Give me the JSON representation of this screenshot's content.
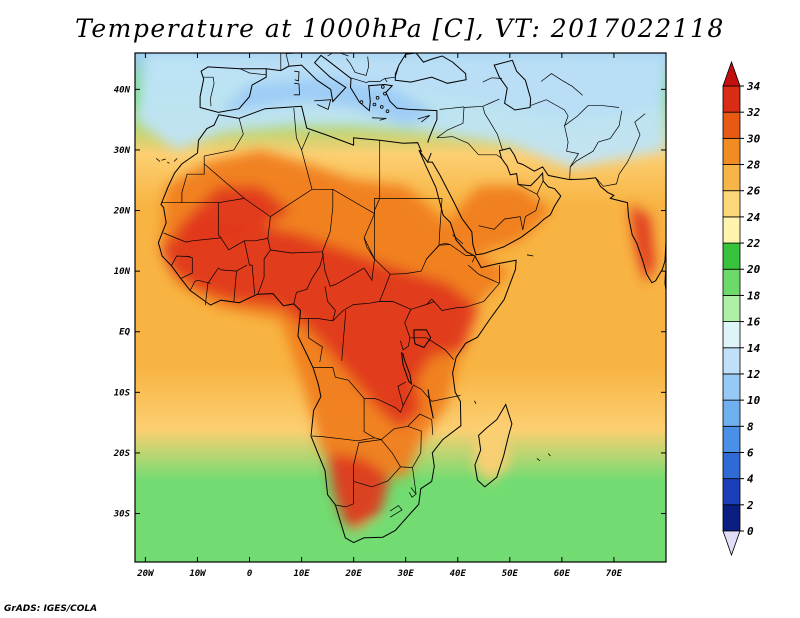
{
  "title": "Temperature at 1000hPa [C], VT: 2017022118",
  "credit": "GrADS: IGES/COLA",
  "map": {
    "lon_range": [
      -22,
      80
    ],
    "lat_range": [
      -38,
      46
    ],
    "lon_ticks": [
      {
        "value": -20,
        "label": "20W"
      },
      {
        "value": -10,
        "label": "10W"
      },
      {
        "value": 0,
        "label": "0"
      },
      {
        "value": 10,
        "label": "10E"
      },
      {
        "value": 20,
        "label": "20E"
      },
      {
        "value": 30,
        "label": "30E"
      },
      {
        "value": 40,
        "label": "40E"
      },
      {
        "value": 50,
        "label": "50E"
      },
      {
        "value": 60,
        "label": "60E"
      },
      {
        "value": 70,
        "label": "70E"
      }
    ],
    "lat_ticks": [
      {
        "value": 40,
        "label": "40N"
      },
      {
        "value": 30,
        "label": "30N"
      },
      {
        "value": 20,
        "label": "20N"
      },
      {
        "value": 10,
        "label": "10N"
      },
      {
        "value": 0,
        "label": "EQ"
      },
      {
        "value": -10,
        "label": "10S"
      },
      {
        "value": -20,
        "label": "20S"
      },
      {
        "value": -30,
        "label": "30S"
      }
    ]
  },
  "colorbar": {
    "levels": [
      0,
      2,
      4,
      6,
      8,
      10,
      12,
      14,
      16,
      18,
      20,
      22,
      24,
      26,
      28,
      30,
      32,
      34
    ],
    "colors": [
      "#0a1e82",
      "#1a3fb8",
      "#2f6ad6",
      "#4a90e6",
      "#6fb0f0",
      "#97c9f6",
      "#bfe0fa",
      "#dff4f8",
      "#aef0a6",
      "#6bda6a",
      "#39c23c",
      "#fff3ae",
      "#fbd77a",
      "#f7b548",
      "#f08c22",
      "#e85a14",
      "#d92c14"
    ],
    "under_color": "#e2dcf6",
    "over_color": "#c21010"
  },
  "colors": {
    "ocean_warm": "#f8b443",
    "ocean_mild": "#fccf72",
    "ocean_cool": "#72dc72",
    "mediterranean": "#9dcbf5",
    "land_hot": "#e0391a",
    "land_warm": "#f07d1e",
    "land_north": "#c0e4f8",
    "land_cold": "#3f7fe0",
    "coast": "#000000"
  }
}
